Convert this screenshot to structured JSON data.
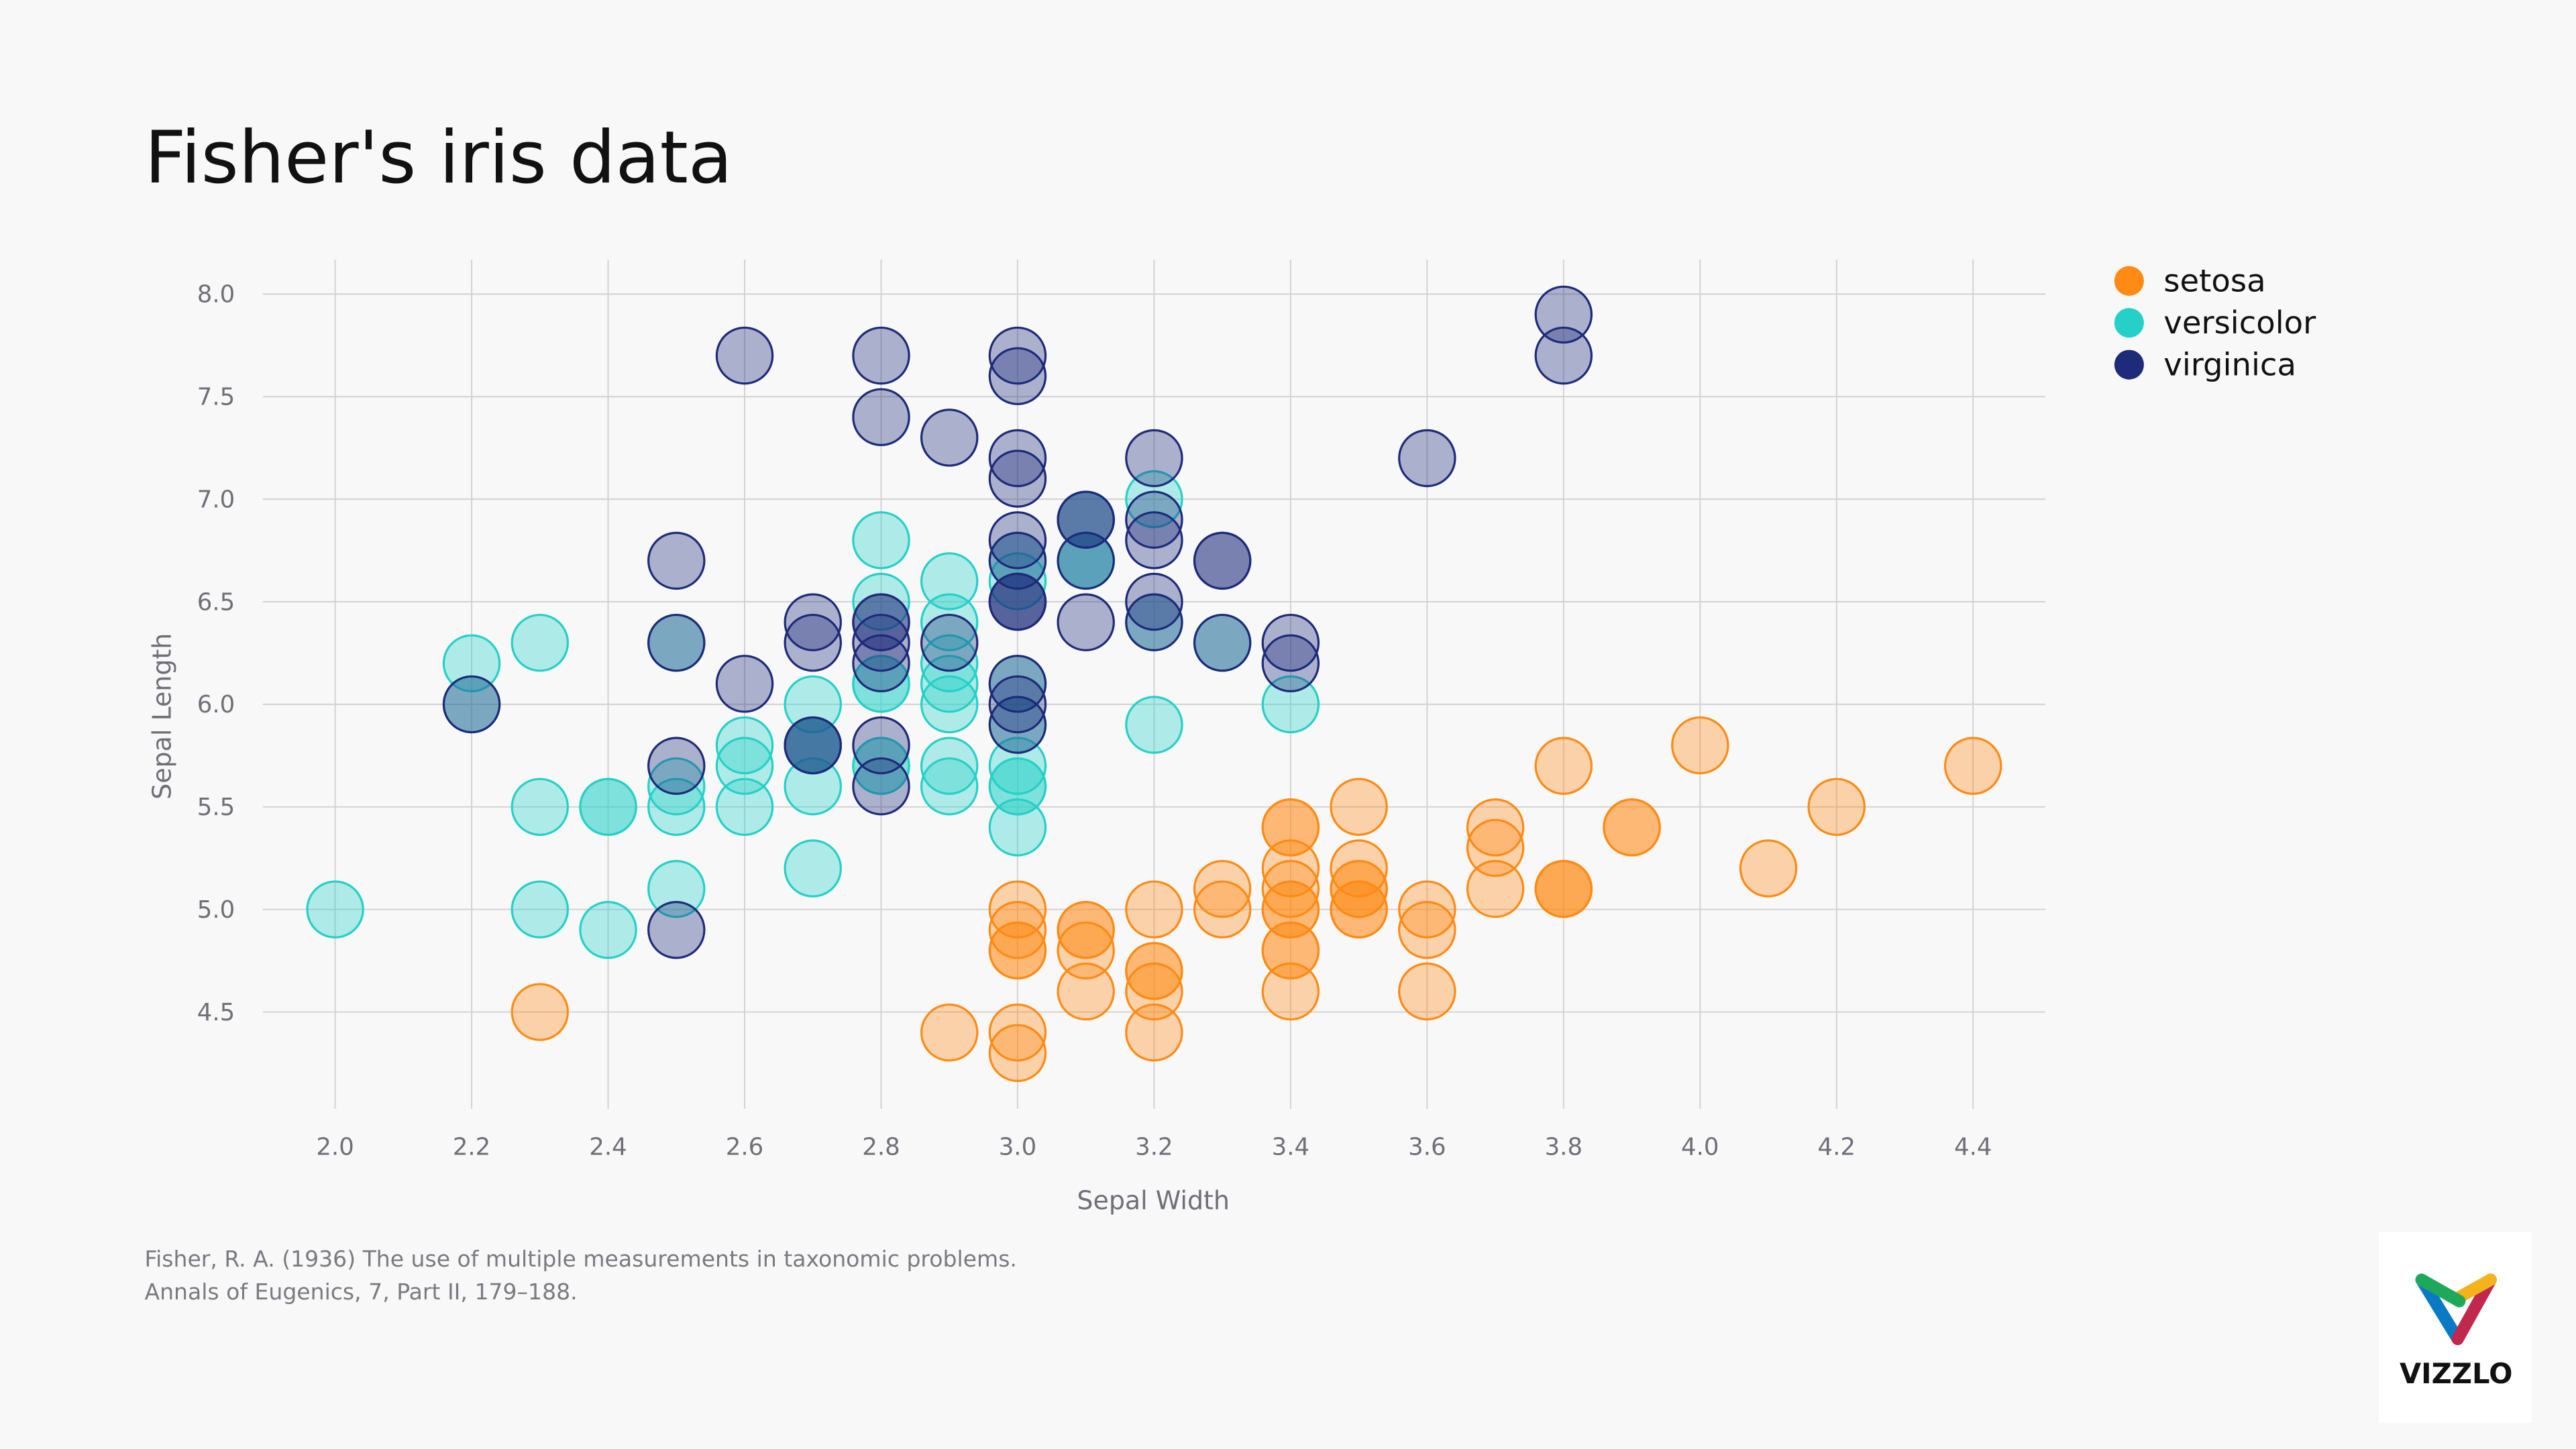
{
  "chart_data": {
    "type": "scatter",
    "title": "Fisher's iris data",
    "xlabel": "Sepal Width",
    "ylabel": "Sepal Length",
    "xlim": [
      2.0,
      4.4
    ],
    "ylim": [
      4.5,
      8.0
    ],
    "x_ticks": [
      "2.0",
      "2.2",
      "2.4",
      "2.6",
      "2.8",
      "3.0",
      "3.2",
      "3.4",
      "3.6",
      "3.8",
      "4.0",
      "4.2",
      "4.4"
    ],
    "y_ticks": [
      "4.5",
      "5.0",
      "5.5",
      "6.0",
      "6.5",
      "7.0",
      "7.5",
      "8.0"
    ],
    "grid": true,
    "legend_position": "top-right",
    "series": [
      {
        "name": "setosa",
        "color": "#FF8A14",
        "points": [
          [
            3.5,
            5.1
          ],
          [
            3.0,
            4.9
          ],
          [
            3.2,
            4.7
          ],
          [
            3.1,
            4.6
          ],
          [
            3.6,
            5.0
          ],
          [
            3.9,
            5.4
          ],
          [
            3.4,
            4.6
          ],
          [
            3.4,
            5.0
          ],
          [
            2.9,
            4.4
          ],
          [
            3.1,
            4.9
          ],
          [
            3.7,
            5.4
          ],
          [
            3.4,
            4.8
          ],
          [
            3.0,
            4.8
          ],
          [
            3.0,
            4.3
          ],
          [
            4.0,
            5.8
          ],
          [
            4.4,
            5.7
          ],
          [
            3.9,
            5.4
          ],
          [
            3.5,
            5.1
          ],
          [
            3.8,
            5.7
          ],
          [
            3.8,
            5.1
          ],
          [
            3.4,
            5.4
          ],
          [
            3.7,
            5.1
          ],
          [
            3.6,
            4.6
          ],
          [
            3.3,
            5.1
          ],
          [
            3.4,
            4.8
          ],
          [
            3.0,
            5.0
          ],
          [
            3.4,
            5.0
          ],
          [
            3.5,
            5.2
          ],
          [
            3.4,
            5.2
          ],
          [
            3.2,
            4.7
          ],
          [
            3.1,
            4.8
          ],
          [
            3.4,
            5.4
          ],
          [
            4.1,
            5.2
          ],
          [
            4.2,
            5.5
          ],
          [
            3.1,
            4.9
          ],
          [
            3.2,
            5.0
          ],
          [
            3.5,
            5.5
          ],
          [
            3.6,
            4.9
          ],
          [
            3.0,
            4.4
          ],
          [
            3.4,
            5.1
          ],
          [
            3.5,
            5.0
          ],
          [
            2.3,
            4.5
          ],
          [
            3.2,
            4.4
          ],
          [
            3.5,
            5.0
          ],
          [
            3.8,
            5.1
          ],
          [
            3.0,
            4.8
          ],
          [
            3.8,
            5.1
          ],
          [
            3.2,
            4.6
          ],
          [
            3.7,
            5.3
          ],
          [
            3.3,
            5.0
          ]
        ]
      },
      {
        "name": "versicolor",
        "color": "#25D0C8",
        "points": [
          [
            3.2,
            7.0
          ],
          [
            3.2,
            6.4
          ],
          [
            3.1,
            6.9
          ],
          [
            2.3,
            5.5
          ],
          [
            2.8,
            6.5
          ],
          [
            2.8,
            5.7
          ],
          [
            3.3,
            6.3
          ],
          [
            2.4,
            4.9
          ],
          [
            2.9,
            6.6
          ],
          [
            2.7,
            5.2
          ],
          [
            2.0,
            5.0
          ],
          [
            3.0,
            5.9
          ],
          [
            2.2,
            6.0
          ],
          [
            2.9,
            6.1
          ],
          [
            2.9,
            5.6
          ],
          [
            3.1,
            6.7
          ],
          [
            3.0,
            5.6
          ],
          [
            2.7,
            5.8
          ],
          [
            2.2,
            6.2
          ],
          [
            2.5,
            5.6
          ],
          [
            3.2,
            5.9
          ],
          [
            2.8,
            6.1
          ],
          [
            2.5,
            6.3
          ],
          [
            2.8,
            6.1
          ],
          [
            2.9,
            6.4
          ],
          [
            3.0,
            6.6
          ],
          [
            2.8,
            6.8
          ],
          [
            3.0,
            6.7
          ],
          [
            2.9,
            6.0
          ],
          [
            2.6,
            5.7
          ],
          [
            2.4,
            5.5
          ],
          [
            2.4,
            5.5
          ],
          [
            2.7,
            5.8
          ],
          [
            2.7,
            6.0
          ],
          [
            3.0,
            5.4
          ],
          [
            3.4,
            6.0
          ],
          [
            3.1,
            6.7
          ],
          [
            2.3,
            6.3
          ],
          [
            3.0,
            5.6
          ],
          [
            2.5,
            5.5
          ],
          [
            2.6,
            5.5
          ],
          [
            3.0,
            6.1
          ],
          [
            2.6,
            5.8
          ],
          [
            2.3,
            5.0
          ],
          [
            2.7,
            5.6
          ],
          [
            3.0,
            5.7
          ],
          [
            2.9,
            5.7
          ],
          [
            2.9,
            6.2
          ],
          [
            2.5,
            5.1
          ],
          [
            2.8,
            5.7
          ]
        ]
      },
      {
        "name": "virginica",
        "color": "#1E2A7A",
        "points": [
          [
            3.3,
            6.3
          ],
          [
            2.7,
            5.8
          ],
          [
            3.0,
            7.1
          ],
          [
            2.9,
            6.3
          ],
          [
            3.0,
            6.5
          ],
          [
            3.0,
            7.6
          ],
          [
            2.5,
            4.9
          ],
          [
            2.9,
            7.3
          ],
          [
            2.5,
            6.7
          ],
          [
            3.6,
            7.2
          ],
          [
            3.2,
            6.5
          ],
          [
            2.7,
            6.4
          ],
          [
            3.0,
            6.8
          ],
          [
            2.5,
            5.7
          ],
          [
            2.8,
            5.8
          ],
          [
            3.2,
            6.4
          ],
          [
            3.0,
            6.5
          ],
          [
            3.8,
            7.7
          ],
          [
            2.6,
            7.7
          ],
          [
            2.2,
            6.0
          ],
          [
            3.2,
            6.9
          ],
          [
            2.8,
            5.6
          ],
          [
            2.8,
            7.7
          ],
          [
            2.7,
            6.3
          ],
          [
            3.3,
            6.7
          ],
          [
            3.2,
            7.2
          ],
          [
            2.8,
            6.2
          ],
          [
            3.0,
            6.1
          ],
          [
            2.8,
            6.4
          ],
          [
            3.0,
            7.2
          ],
          [
            2.8,
            7.4
          ],
          [
            3.8,
            7.9
          ],
          [
            2.8,
            6.4
          ],
          [
            2.8,
            6.3
          ],
          [
            2.6,
            6.1
          ],
          [
            3.0,
            7.7
          ],
          [
            3.4,
            6.3
          ],
          [
            3.1,
            6.4
          ],
          [
            3.0,
            6.0
          ],
          [
            3.1,
            6.9
          ],
          [
            3.1,
            6.7
          ],
          [
            3.1,
            6.9
          ],
          [
            2.7,
            5.8
          ],
          [
            3.2,
            6.8
          ],
          [
            3.3,
            6.7
          ],
          [
            3.0,
            6.7
          ],
          [
            2.5,
            6.3
          ],
          [
            3.0,
            6.5
          ],
          [
            3.4,
            6.2
          ],
          [
            3.0,
            5.9
          ]
        ]
      }
    ]
  },
  "citation": {
    "line1": "Fisher, R. A. (1936) The use of multiple measurements in taxonomic problems.",
    "line2": "Annals of Eugenics, 7, Part II, 179–188."
  },
  "logo": {
    "text": "VIZZLO"
  }
}
